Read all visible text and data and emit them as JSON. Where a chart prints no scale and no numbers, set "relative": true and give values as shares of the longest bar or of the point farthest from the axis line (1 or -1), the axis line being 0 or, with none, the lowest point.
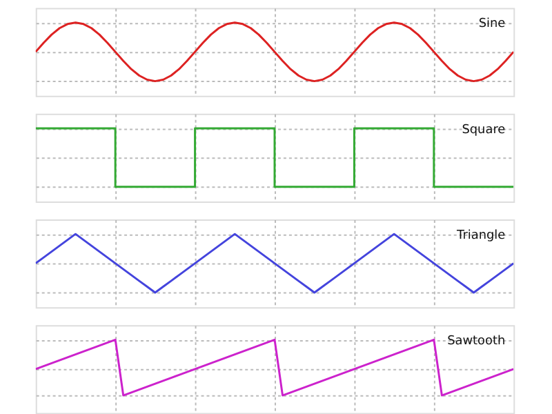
{
  "chart_data": [
    {
      "type": "line",
      "title": "Sine",
      "relative": true,
      "line_style": "solid",
      "grid": true,
      "tick_labels": false,
      "color": "#dd2222",
      "categories": [
        null,
        null,
        null,
        null,
        null,
        null,
        null,
        null,
        null,
        null,
        null,
        null,
        null,
        null,
        null,
        null,
        null,
        null,
        null,
        null,
        null,
        null,
        null,
        null,
        null,
        null,
        null,
        null,
        null,
        null,
        null,
        null,
        null,
        null,
        null,
        null,
        null,
        null,
        null,
        null,
        null,
        null,
        null,
        null,
        null,
        null,
        null,
        null,
        null,
        null,
        null,
        null,
        null,
        null,
        null,
        null,
        null,
        null,
        null,
        null,
        null
      ],
      "values": [
        0,
        0.31,
        0.59,
        0.81,
        0.95,
        1,
        0.95,
        0.81,
        0.59,
        0.31,
        0,
        -0.31,
        -0.59,
        -0.81,
        -0.95,
        -1,
        -0.95,
        -0.81,
        -0.59,
        -0.31,
        0,
        0.31,
        0.59,
        0.81,
        0.95,
        1,
        0.95,
        0.81,
        0.59,
        0.31,
        0,
        -0.31,
        -0.59,
        -0.81,
        -0.95,
        -1,
        -0.95,
        -0.81,
        -0.59,
        -0.31,
        0,
        0.31,
        0.59,
        0.81,
        0.95,
        1,
        0.95,
        0.81,
        0.59,
        0.31,
        0,
        -0.31,
        -0.59,
        -0.81,
        -0.95,
        -1,
        -0.95,
        -0.81,
        -0.59,
        -0.31,
        0
      ]
    },
    {
      "type": "step",
      "title": "Square",
      "relative": true,
      "line_style": "solid",
      "grid": true,
      "tick_labels": false,
      "color": "#33aa33",
      "categories": [
        null,
        null,
        null,
        null,
        null,
        null,
        null,
        null,
        null,
        null,
        null,
        null,
        null,
        null,
        null,
        null,
        null,
        null,
        null,
        null,
        null,
        null,
        null,
        null,
        null,
        null,
        null,
        null,
        null,
        null,
        null,
        null,
        null,
        null,
        null,
        null,
        null,
        null,
        null,
        null,
        null,
        null,
        null,
        null,
        null,
        null,
        null,
        null,
        null,
        null,
        null,
        null,
        null,
        null,
        null,
        null,
        null,
        null,
        null,
        null,
        null
      ],
      "values": [
        1,
        1,
        1,
        1,
        1,
        1,
        1,
        1,
        1,
        1,
        -1,
        -1,
        -1,
        -1,
        -1,
        -1,
        -1,
        -1,
        -1,
        -1,
        1,
        1,
        1,
        1,
        1,
        1,
        1,
        1,
        1,
        1,
        -1,
        -1,
        -1,
        -1,
        -1,
        -1,
        -1,
        -1,
        -1,
        -1,
        1,
        1,
        1,
        1,
        1,
        1,
        1,
        1,
        1,
        1,
        -1,
        -1,
        -1,
        -1,
        -1,
        -1,
        -1,
        -1,
        -1,
        -1,
        -1
      ]
    },
    {
      "type": "line",
      "title": "Triangle",
      "relative": true,
      "line_style": "solid",
      "grid": true,
      "tick_labels": false,
      "color": "#4444dd",
      "categories": [
        null,
        null,
        null,
        null,
        null,
        null,
        null,
        null,
        null,
        null,
        null,
        null,
        null,
        null,
        null,
        null,
        null,
        null,
        null,
        null,
        null,
        null,
        null,
        null,
        null,
        null,
        null,
        null,
        null,
        null,
        null,
        null,
        null,
        null,
        null,
        null,
        null,
        null,
        null,
        null,
        null,
        null,
        null,
        null,
        null,
        null,
        null,
        null,
        null,
        null,
        null,
        null,
        null,
        null,
        null,
        null,
        null,
        null,
        null,
        null,
        null
      ],
      "values": [
        0,
        0.2,
        0.4,
        0.6,
        0.8,
        1,
        0.8,
        0.6,
        0.4,
        0.2,
        0,
        -0.2,
        -0.4,
        -0.6,
        -0.8,
        -1,
        -0.8,
        -0.6,
        -0.4,
        -0.2,
        0,
        0.2,
        0.4,
        0.6,
        0.8,
        1,
        0.8,
        0.6,
        0.4,
        0.2,
        0,
        -0.2,
        -0.4,
        -0.6,
        -0.8,
        -1,
        -0.8,
        -0.6,
        -0.4,
        -0.2,
        0,
        0.2,
        0.4,
        0.6,
        0.8,
        1,
        0.8,
        0.6,
        0.4,
        0.2,
        0,
        -0.2,
        -0.4,
        -0.6,
        -0.8,
        -1,
        -0.8,
        -0.6,
        -0.4,
        -0.2,
        0
      ]
    },
    {
      "type": "line",
      "title": "Sawtooth",
      "relative": true,
      "line_style": "solid",
      "grid": true,
      "tick_labels": false,
      "color": "#cc22cc",
      "categories": [
        null,
        null,
        null,
        null,
        null,
        null,
        null,
        null,
        null,
        null,
        null,
        null,
        null,
        null,
        null,
        null,
        null,
        null,
        null,
        null,
        null,
        null,
        null,
        null,
        null,
        null,
        null,
        null,
        null,
        null,
        null,
        null,
        null,
        null,
        null,
        null,
        null,
        null,
        null,
        null,
        null,
        null,
        null,
        null,
        null,
        null,
        null,
        null,
        null,
        null,
        null,
        null,
        null,
        null,
        null,
        null,
        null,
        null,
        null,
        null,
        null
      ],
      "values": [
        0,
        0.1,
        0.2,
        0.3,
        0.4,
        0.5,
        0.6,
        0.7,
        0.8,
        0.9,
        1,
        -0.9,
        -0.8,
        -0.7,
        -0.6,
        -0.5,
        -0.4,
        -0.3,
        -0.2,
        -0.1,
        0,
        0.1,
        0.2,
        0.3,
        0.4,
        0.5,
        0.6,
        0.7,
        0.8,
        0.9,
        1,
        -0.9,
        -0.8,
        -0.7,
        -0.6,
        -0.5,
        -0.4,
        -0.3,
        -0.2,
        -0.1,
        0,
        0.1,
        0.2,
        0.3,
        0.4,
        0.5,
        0.6,
        0.7,
        0.8,
        0.9,
        1,
        -0.9,
        -0.8,
        -0.7,
        -0.6,
        -0.5,
        -0.4,
        -0.3,
        -0.2,
        -0.1,
        0
      ]
    }
  ]
}
